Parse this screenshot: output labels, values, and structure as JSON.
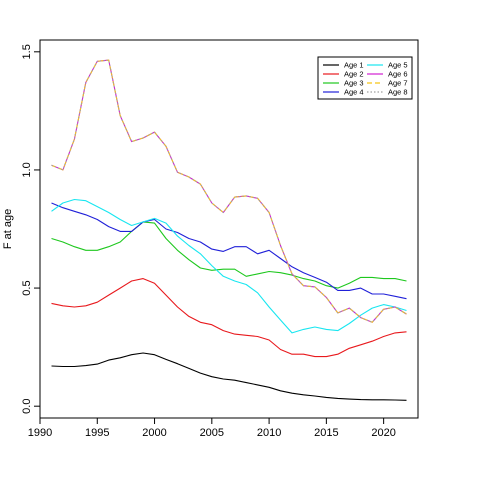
{
  "chart_data": {
    "type": "line",
    "title": "",
    "xlabel": "",
    "ylabel": "F at age",
    "xlim": [
      1990,
      2023
    ],
    "ylim": [
      -0.05,
      1.55
    ],
    "xticks": [
      1990,
      1995,
      2000,
      2005,
      2010,
      2015,
      2020
    ],
    "yticks": [
      0.0,
      0.5,
      1.0,
      1.5
    ],
    "ytick_labels": [
      "0.0",
      "0.5",
      "1.0",
      "1.5"
    ],
    "grid": false,
    "legend_position": "top-right",
    "x": [
      1991,
      1992,
      1993,
      1994,
      1995,
      1996,
      1997,
      1998,
      1999,
      2000,
      2001,
      2002,
      2003,
      2004,
      2005,
      2006,
      2007,
      2008,
      2009,
      2010,
      2011,
      2012,
      2013,
      2014,
      2015,
      2016,
      2017,
      2018,
      2019,
      2020,
      2021,
      2022
    ],
    "series": [
      {
        "name": "Age 1",
        "color": "#000000",
        "dash": "solid",
        "values": [
          0.17,
          0.168,
          0.168,
          0.172,
          0.178,
          0.195,
          0.205,
          0.218,
          0.225,
          0.218,
          0.198,
          0.18,
          0.16,
          0.14,
          0.125,
          0.115,
          0.11,
          0.1,
          0.09,
          0.08,
          0.065,
          0.055,
          0.048,
          0.043,
          0.037,
          0.033,
          0.03,
          0.028,
          0.027,
          0.027,
          0.026,
          0.025
        ]
      },
      {
        "name": "Age 2",
        "color": "#e8191d",
        "dash": "solid",
        "values": [
          0.435,
          0.425,
          0.42,
          0.425,
          0.44,
          0.47,
          0.5,
          0.53,
          0.54,
          0.52,
          0.47,
          0.42,
          0.38,
          0.355,
          0.345,
          0.32,
          0.305,
          0.3,
          0.295,
          0.28,
          0.24,
          0.22,
          0.22,
          0.21,
          0.21,
          0.22,
          0.245,
          0.26,
          0.275,
          0.295,
          0.31,
          0.315
        ]
      },
      {
        "name": "Age 3",
        "color": "#1ec81e",
        "dash": "solid",
        "values": [
          0.71,
          0.695,
          0.675,
          0.66,
          0.66,
          0.675,
          0.695,
          0.74,
          0.78,
          0.775,
          0.71,
          0.66,
          0.62,
          0.585,
          0.575,
          0.58,
          0.58,
          0.55,
          0.56,
          0.57,
          0.565,
          0.555,
          0.54,
          0.53,
          0.51,
          0.5,
          0.52,
          0.545,
          0.545,
          0.54,
          0.54,
          0.53
        ]
      },
      {
        "name": "Age 4",
        "color": "#2020d8",
        "dash": "solid",
        "values": [
          0.86,
          0.84,
          0.825,
          0.81,
          0.79,
          0.76,
          0.74,
          0.74,
          0.78,
          0.79,
          0.75,
          0.735,
          0.71,
          0.695,
          0.665,
          0.655,
          0.675,
          0.675,
          0.645,
          0.66,
          0.625,
          0.59,
          0.565,
          0.545,
          0.525,
          0.49,
          0.49,
          0.5,
          0.475,
          0.475,
          0.465,
          0.455
        ]
      },
      {
        "name": "Age 5",
        "color": "#18e6f0",
        "dash": "solid",
        "values": [
          0.825,
          0.86,
          0.875,
          0.87,
          0.845,
          0.82,
          0.79,
          0.765,
          0.78,
          0.795,
          0.775,
          0.72,
          0.68,
          0.645,
          0.595,
          0.55,
          0.53,
          0.515,
          0.48,
          0.42,
          0.365,
          0.31,
          0.325,
          0.335,
          0.325,
          0.32,
          0.35,
          0.385,
          0.415,
          0.43,
          0.42,
          0.405
        ]
      },
      {
        "name": "Age 6",
        "color": "#d21fd2",
        "dash": "solid",
        "values": [
          1.02,
          1.0,
          1.13,
          1.37,
          1.46,
          1.465,
          1.23,
          1.12,
          1.135,
          1.16,
          1.1,
          0.99,
          0.97,
          0.94,
          0.86,
          0.82,
          0.885,
          0.89,
          0.88,
          0.82,
          0.68,
          0.56,
          0.51,
          0.505,
          0.46,
          0.395,
          0.415,
          0.375,
          0.355,
          0.41,
          0.42,
          0.39
        ]
      },
      {
        "name": "Age 7",
        "color": "#f5c518",
        "dash": "dashed",
        "values": [
          1.02,
          1.0,
          1.13,
          1.37,
          1.46,
          1.465,
          1.23,
          1.12,
          1.135,
          1.16,
          1.1,
          0.99,
          0.97,
          0.94,
          0.86,
          0.82,
          0.885,
          0.89,
          0.88,
          0.82,
          0.68,
          0.56,
          0.51,
          0.505,
          0.46,
          0.395,
          0.415,
          0.375,
          0.355,
          0.41,
          0.42,
          0.39
        ]
      },
      {
        "name": "Age 8",
        "color": "#a0a0a0",
        "dash": "dotted",
        "values": [
          1.02,
          1.0,
          1.13,
          1.37,
          1.46,
          1.465,
          1.23,
          1.12,
          1.135,
          1.16,
          1.1,
          0.99,
          0.97,
          0.94,
          0.86,
          0.82,
          0.885,
          0.89,
          0.88,
          0.82,
          0.68,
          0.56,
          0.51,
          0.505,
          0.46,
          0.395,
          0.415,
          0.375,
          0.355,
          0.41,
          0.42,
          0.39
        ]
      }
    ]
  }
}
